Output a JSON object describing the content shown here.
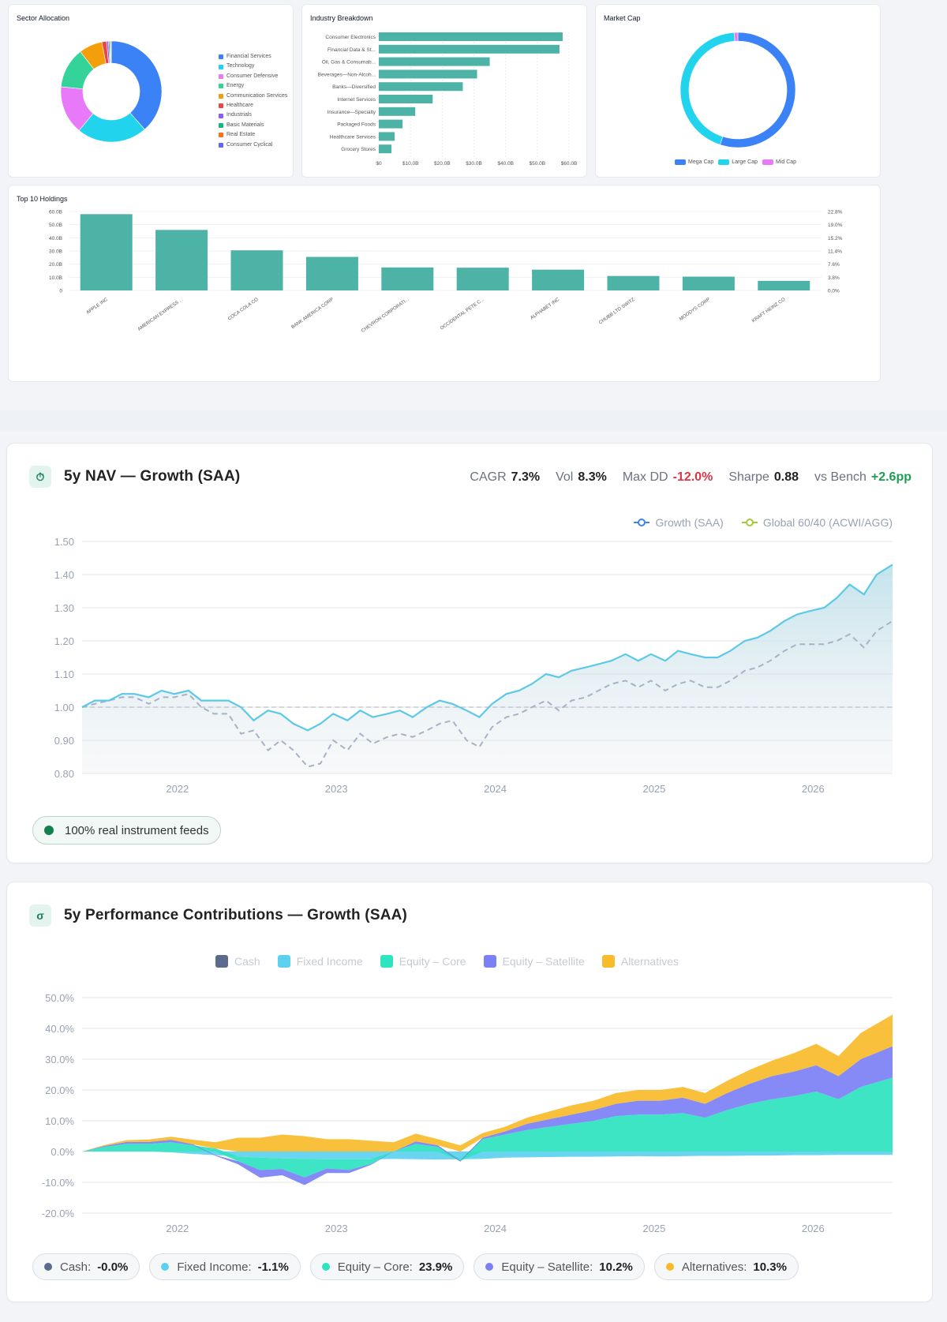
{
  "sector": {
    "title": "Sector Allocation",
    "legend": [
      {
        "label": "Financial Services",
        "color": "#3b82f6"
      },
      {
        "label": "Technology",
        "color": "#22d3ee"
      },
      {
        "label": "Consumer Defensive",
        "color": "#e879f9"
      },
      {
        "label": "Energy",
        "color": "#34d399"
      },
      {
        "label": "Communication Services",
        "color": "#f59e0b"
      },
      {
        "label": "Healthcare",
        "color": "#ef4444"
      },
      {
        "label": "Industrials",
        "color": "#8b5cf6"
      },
      {
        "label": "Basic Materials",
        "color": "#10b981"
      },
      {
        "label": "Real Estate",
        "color": "#f97316"
      },
      {
        "label": "Consumer Cyclical",
        "color": "#6366f1"
      }
    ]
  },
  "industry": {
    "title": "Industry Breakdown"
  },
  "market_cap": {
    "title": "Market Cap",
    "legend": [
      {
        "label": "Mega Cap",
        "color": "#3b82f6"
      },
      {
        "label": "Large Cap",
        "color": "#22d3ee"
      },
      {
        "label": "Mid Cap",
        "color": "#e879f9"
      }
    ]
  },
  "holdings": {
    "title": "Top 10 Holdings"
  },
  "nav": {
    "title": "5y NAV — Growth (SAA)",
    "stats": [
      {
        "label": "CAGR",
        "value": "7.3%",
        "tone": "neutral"
      },
      {
        "label": "Vol",
        "value": "8.3%",
        "tone": "neutral"
      },
      {
        "label": "Max DD",
        "value": "-12.0%",
        "tone": "neg"
      },
      {
        "label": "Sharpe",
        "value": "0.88",
        "tone": "neutral"
      },
      {
        "label": "vs Bench",
        "value": "+2.6pp",
        "tone": "pos"
      }
    ],
    "legend": [
      {
        "label": "Growth (SAA)",
        "color": "#3b82f6"
      },
      {
        "label": "Global 60/40 (ACWI/AGG)",
        "color": "#a3c93a"
      }
    ],
    "badge": "100% real instrument feeds"
  },
  "contrib": {
    "title": "5y Performance Contributions — Growth (SAA)",
    "legend": [
      {
        "label": "Cash",
        "color": "#5a6b8c"
      },
      {
        "label": "Fixed Income",
        "color": "#5cd1ef"
      },
      {
        "label": "Equity – Core",
        "color": "#2ee3c0"
      },
      {
        "label": "Equity – Satellite",
        "color": "#7b80f5"
      },
      {
        "label": "Alternatives",
        "color": "#f8bb2b"
      }
    ],
    "pills": [
      {
        "label": "Cash:",
        "value": "-0.0%",
        "color": "#5a6b8c"
      },
      {
        "label": "Fixed Income:",
        "value": "-1.1%",
        "color": "#5cd1ef"
      },
      {
        "label": "Equity – Core:",
        "value": "23.9%",
        "color": "#2ee3c0"
      },
      {
        "label": "Equity – Satellite:",
        "value": "10.2%",
        "color": "#7b80f5"
      },
      {
        "label": "Alternatives:",
        "value": "10.3%",
        "color": "#f8bb2b"
      }
    ]
  },
  "chart_data": [
    {
      "id": "sector",
      "type": "pie",
      "title": "Sector Allocation",
      "labels": [
        "Financial Services",
        "Technology",
        "Consumer Defensive",
        "Energy",
        "Communication Services",
        "Healthcare",
        "Industrials",
        "Basic Materials",
        "Real Estate",
        "Consumer Cyclical"
      ],
      "values": [
        38.5,
        22.5,
        15.5,
        13.0,
        7.5,
        1.5,
        0.6,
        0.4,
        0.3,
        0.2
      ],
      "colors": [
        "#3b82f6",
        "#22d3ee",
        "#e879f9",
        "#34d399",
        "#f59e0b",
        "#ef4444",
        "#8b5cf6",
        "#10b981",
        "#f97316",
        "#6366f1"
      ]
    },
    {
      "id": "industry",
      "type": "bar",
      "orientation": "horizontal",
      "title": "Industry Breakdown",
      "categories": [
        "Consumer Electronics",
        "Financial Data & St...",
        "Oil, Gas & Consumab...",
        "Beverages—Non-Alcoh...",
        "Banks—Diversified",
        "Internet Services",
        "Insurance—Specialty",
        "Packaged Foods",
        "Healthcare Services",
        "Grocery Stores"
      ],
      "values": [
        58,
        57,
        35,
        31,
        26.5,
        17,
        11.5,
        7.5,
        5,
        4
      ],
      "ticks": [
        "$0",
        "$10.0B",
        "$20.0B",
        "$30.0B",
        "$40.0B",
        "$50.0B",
        "$60.0B"
      ],
      "xlim": [
        0,
        60
      ]
    },
    {
      "id": "market_cap",
      "type": "pie",
      "title": "Market Cap",
      "labels": [
        "Mega Cap",
        "Large Cap",
        "Mid Cap"
      ],
      "values": [
        55,
        44,
        1
      ],
      "colors": [
        "#3b82f6",
        "#22d3ee",
        "#e879f9"
      ]
    },
    {
      "id": "holdings",
      "type": "bar",
      "title": "Top 10 Holdings",
      "categories": [
        "APPLE INC",
        "AMERICAN EXPRESS ...",
        "COCA COLA CO",
        "BANK AMERICA CORP",
        "CHEVRON CORPORATI...",
        "OCCIDENTAL PETE C...",
        "ALPHABET INC",
        "CHUBB LTD SWITZ",
        "MOODYS CORP",
        "KRAFT HEINZ CO"
      ],
      "values": [
        58,
        46,
        30.5,
        25.5,
        17.5,
        17.3,
        15.8,
        11,
        10.5,
        7.3
      ],
      "yticks": [
        "60.0B",
        "50.0B",
        "40.0B",
        "30.0B",
        "20.0B",
        "10.0B",
        "0"
      ],
      "y2ticks": [
        "22.8%",
        "19.0%",
        "15.2%",
        "11.4%",
        "7.6%",
        "3.8%",
        "0.0%"
      ],
      "ylim": [
        0,
        60
      ]
    },
    {
      "id": "nav",
      "type": "line",
      "title": "5y NAV — Growth (SAA)",
      "x_ticks": [
        "2022",
        "2023",
        "2024",
        "2025",
        "2026"
      ],
      "yticks": [
        "1.50",
        "1.40",
        "1.30",
        "1.20",
        "1.10",
        "1.00",
        "0.90",
        "0.80"
      ],
      "ylim": [
        0.8,
        1.5
      ],
      "xlim": [
        2021.4,
        2026.5
      ],
      "x": [
        2021.4,
        2021.48,
        2021.57,
        2021.65,
        2021.73,
        2021.82,
        2021.9,
        2021.98,
        2022.07,
        2022.15,
        2022.23,
        2022.32,
        2022.4,
        2022.48,
        2022.57,
        2022.65,
        2022.73,
        2022.82,
        2022.9,
        2022.98,
        2023.07,
        2023.15,
        2023.23,
        2023.32,
        2023.4,
        2023.48,
        2023.57,
        2023.65,
        2023.73,
        2023.82,
        2023.9,
        2023.98,
        2024.07,
        2024.15,
        2024.23,
        2024.32,
        2024.4,
        2024.48,
        2024.57,
        2024.65,
        2024.73,
        2024.82,
        2024.9,
        2024.98,
        2025.07,
        2025.15,
        2025.23,
        2025.32,
        2025.4,
        2025.48,
        2025.57,
        2025.65,
        2025.73,
        2025.82,
        2025.9,
        2025.98,
        2026.07,
        2026.15,
        2026.23,
        2026.32,
        2026.4,
        2026.5
      ],
      "series": [
        {
          "name": "Growth (SAA)",
          "color": "#5cc9e6",
          "values": [
            1.0,
            1.02,
            1.02,
            1.04,
            1.04,
            1.03,
            1.05,
            1.04,
            1.05,
            1.02,
            1.02,
            1.02,
            1.0,
            0.96,
            0.99,
            0.98,
            0.95,
            0.93,
            0.95,
            0.98,
            0.96,
            0.99,
            0.97,
            0.98,
            0.99,
            0.97,
            1.0,
            1.02,
            1.01,
            0.99,
            0.97,
            1.01,
            1.04,
            1.05,
            1.07,
            1.1,
            1.09,
            1.11,
            1.12,
            1.13,
            1.14,
            1.16,
            1.14,
            1.16,
            1.14,
            1.17,
            1.16,
            1.15,
            1.15,
            1.17,
            1.2,
            1.21,
            1.23,
            1.26,
            1.28,
            1.29,
            1.3,
            1.33,
            1.37,
            1.34,
            1.4,
            1.43
          ]
        },
        {
          "name": "Global 60/40 (ACWI/AGG)",
          "color": "#a8b2c5",
          "values": [
            1.0,
            1.01,
            1.02,
            1.03,
            1.03,
            1.01,
            1.03,
            1.03,
            1.04,
            1.0,
            0.98,
            0.98,
            0.92,
            0.93,
            0.87,
            0.9,
            0.87,
            0.82,
            0.83,
            0.9,
            0.87,
            0.92,
            0.89,
            0.91,
            0.92,
            0.91,
            0.93,
            0.95,
            0.96,
            0.9,
            0.88,
            0.94,
            0.97,
            0.98,
            1.0,
            1.02,
            0.99,
            1.02,
            1.03,
            1.05,
            1.07,
            1.08,
            1.06,
            1.08,
            1.05,
            1.07,
            1.08,
            1.06,
            1.06,
            1.08,
            1.11,
            1.12,
            1.14,
            1.17,
            1.19,
            1.19,
            1.19,
            1.2,
            1.22,
            1.18,
            1.23,
            1.26
          ]
        }
      ],
      "baseline": 1.0
    },
    {
      "id": "contrib",
      "type": "area",
      "stacked": true,
      "title": "5y Performance Contributions — Growth (SAA)",
      "x_ticks": [
        "2022",
        "2023",
        "2024",
        "2025",
        "2026"
      ],
      "yticks": [
        "50.0%",
        "40.0%",
        "30.0%",
        "20.0%",
        "10.0%",
        "0.0%",
        "-10.0%",
        "-20.0%"
      ],
      "ylim": [
        -20,
        50
      ],
      "xlim": [
        2021.4,
        2026.5
      ],
      "x": [
        2021.4,
        2021.54,
        2021.68,
        2021.82,
        2021.96,
        2022.1,
        2022.24,
        2022.38,
        2022.52,
        2022.66,
        2022.8,
        2022.94,
        2023.08,
        2023.22,
        2023.36,
        2023.5,
        2023.64,
        2023.78,
        2023.92,
        2024.06,
        2024.2,
        2024.34,
        2024.48,
        2024.62,
        2024.76,
        2024.9,
        2025.04,
        2025.18,
        2025.32,
        2025.46,
        2025.6,
        2025.74,
        2025.88,
        2026.02,
        2026.16,
        2026.3,
        2026.5
      ],
      "series": [
        {
          "name": "Cash",
          "color": "#5a6b8c",
          "values": [
            0,
            0,
            0,
            0,
            0,
            0,
            0,
            0,
            0,
            0,
            0,
            0,
            0,
            0,
            0,
            0,
            0,
            0,
            0,
            0,
            0,
            0,
            0,
            0,
            0,
            0,
            0,
            0,
            0,
            0,
            0,
            0,
            0,
            0,
            0,
            0,
            0
          ]
        },
        {
          "name": "Fixed Income",
          "color": "#5cd1ef",
          "values": [
            0,
            0,
            0,
            0,
            -0.3,
            -0.8,
            -1.2,
            -1.6,
            -2.0,
            -2.2,
            -2.4,
            -2.5,
            -2.5,
            -2.5,
            -2.4,
            -2.5,
            -2.6,
            -2.5,
            -2.4,
            -2.0,
            -1.9,
            -1.8,
            -1.7,
            -1.7,
            -1.6,
            -1.5,
            -1.6,
            -1.5,
            -1.4,
            -1.4,
            -1.3,
            -1.3,
            -1.2,
            -1.2,
            -1.1,
            -1.1,
            -1.1
          ]
        },
        {
          "name": "Equity – Core",
          "color": "#2ee3c0",
          "values": [
            0,
            1.5,
            2.5,
            2.5,
            3.0,
            2.0,
            1.0,
            -1.5,
            -4.0,
            -3.5,
            -6.0,
            -3.0,
            -3.5,
            -1.5,
            0,
            2.5,
            1.5,
            -0.5,
            4.0,
            5.5,
            7.0,
            8.0,
            9.0,
            10.0,
            11.5,
            12.0,
            12.0,
            12.5,
            11.0,
            13.5,
            15.5,
            17.0,
            18.0,
            19.5,
            17.0,
            21.0,
            24.0
          ]
        },
        {
          "name": "Equity – Satellite",
          "color": "#7b80f5",
          "values": [
            0,
            0.3,
            0.6,
            0.6,
            0.8,
            0.3,
            -0.2,
            -1.0,
            -2.5,
            -2.0,
            -2.5,
            -1.5,
            -1.0,
            -0.3,
            0,
            0.8,
            0.5,
            -0.3,
            0.5,
            1.0,
            2.0,
            2.5,
            3.0,
            3.5,
            4.0,
            4.5,
            4.5,
            5.0,
            4.5,
            5.5,
            6.5,
            7.5,
            8.0,
            8.5,
            7.5,
            9.0,
            10.2
          ]
        },
        {
          "name": "Alternatives",
          "color": "#f8bb2b",
          "values": [
            0,
            0.3,
            0.6,
            0.8,
            1.0,
            1.5,
            2.0,
            4.5,
            4.5,
            5.5,
            5.0,
            4.0,
            4.0,
            3.5,
            3.0,
            2.5,
            2.0,
            2.0,
            1.5,
            1.5,
            2.0,
            2.5,
            3.0,
            3.0,
            3.5,
            3.5,
            3.5,
            3.5,
            3.5,
            4.0,
            4.5,
            5.0,
            6.0,
            7.0,
            6.5,
            8.5,
            10.3
          ]
        }
      ]
    }
  ]
}
